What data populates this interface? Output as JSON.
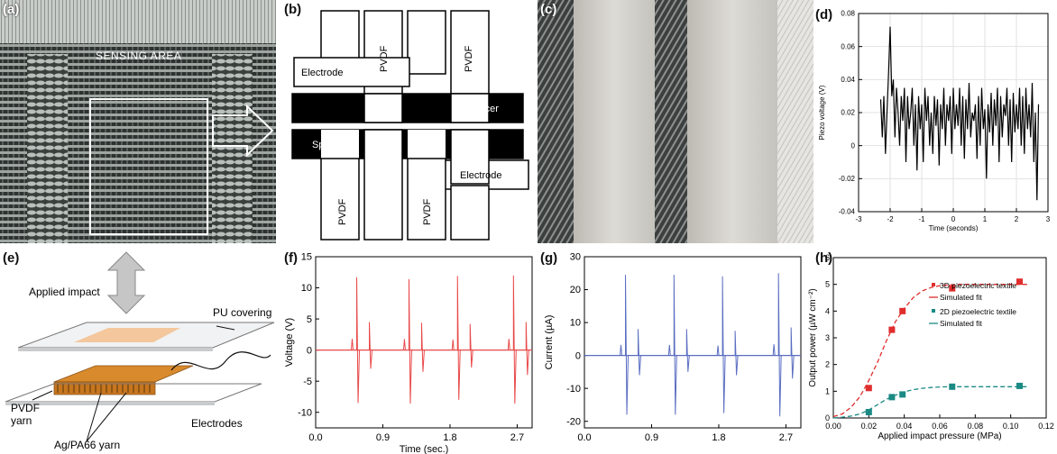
{
  "panels": {
    "a": {
      "label": "(a)",
      "sensing_text": "SENSING AREA"
    },
    "b": {
      "label": "(b)",
      "pvdf": "PVDF",
      "electrode": "Electrode",
      "spacer": "Spacer"
    },
    "c": {
      "label": "(c)"
    },
    "d": {
      "label": "(d)"
    },
    "e": {
      "label": "(e)",
      "applied_impact": "Applied impact",
      "pu_covering": "PU covering",
      "pvdf_yarn": "PVDF\nyarn",
      "agpa_yarn": "Ag/PA66 yarn",
      "electrodes": "Electrodes"
    },
    "f": {
      "label": "(f)"
    },
    "g": {
      "label": "(g)"
    },
    "h": {
      "label": "(h)"
    }
  },
  "colors": {
    "red": "#e8494a",
    "blue": "#5a6dc0",
    "teal": "#1a8a84",
    "black": "#000000",
    "orange": "#d88a2c",
    "fabric_dark": "#3b3f3e",
    "fabric_light": "#d8d6d0"
  },
  "chart_data": [
    {
      "id": "d",
      "type": "line",
      "xlabel": "Time (seconds)",
      "ylabel": "Piezo voltage (V)",
      "xlim": [
        -3,
        3
      ],
      "ylim": [
        -0.04,
        0.08
      ],
      "xticks": [
        -3,
        -2,
        -1,
        0,
        1,
        2,
        3
      ],
      "yticks": [
        -0.04,
        -0.02,
        0,
        0.02,
        0.04,
        0.06,
        0.08
      ],
      "grid": true,
      "x": [
        -2.3,
        -2.25,
        -2.2,
        -2.15,
        -2.1,
        -2.05,
        -2.0,
        -1.95,
        -1.9,
        -1.85,
        -1.8,
        -1.75,
        -1.7,
        -1.65,
        -1.6,
        -1.55,
        -1.5,
        -1.45,
        -1.4,
        -1.35,
        -1.3,
        -1.25,
        -1.2,
        -1.15,
        -1.1,
        -1.05,
        -1.0,
        -0.95,
        -0.9,
        -0.85,
        -0.8,
        -0.75,
        -0.7,
        -0.65,
        -0.6,
        -0.55,
        -0.5,
        -0.45,
        -0.4,
        -0.35,
        -0.3,
        -0.25,
        -0.2,
        -0.15,
        -0.1,
        -0.05,
        0.0,
        0.05,
        0.1,
        0.15,
        0.2,
        0.25,
        0.3,
        0.35,
        0.4,
        0.45,
        0.5,
        0.55,
        0.6,
        0.65,
        0.7,
        0.75,
        0.8,
        0.85,
        0.9,
        0.95,
        1.0,
        1.05,
        1.1,
        1.15,
        1.2,
        1.25,
        1.3,
        1.35,
        1.4,
        1.45,
        1.5,
        1.55,
        1.6,
        1.65,
        1.7,
        1.75,
        1.8,
        1.85,
        1.9,
        1.95,
        2.0,
        2.05,
        2.1,
        2.15,
        2.2,
        2.25,
        2.3,
        2.35,
        2.4,
        2.45,
        2.5,
        2.55,
        2.6,
        2.65,
        2.7
      ],
      "y": [
        0.028,
        0.005,
        0.03,
        -0.005,
        0.02,
        0.045,
        0.072,
        0.03,
        0.04,
        0.005,
        0.035,
        0.02,
        0.0,
        0.03,
        0.015,
        0.035,
        -0.01,
        0.03,
        0.01,
        0.02,
        0.035,
        0.0,
        0.025,
        -0.015,
        0.03,
        0.01,
        0.025,
        -0.01,
        0.035,
        0.015,
        0.03,
        0.0,
        0.02,
        -0.005,
        0.03,
        0.012,
        0.028,
        -0.012,
        0.025,
        0.01,
        0.035,
        0.0,
        0.025,
        0.015,
        0.03,
        -0.005,
        0.035,
        0.01,
        0.025,
        0.012,
        0.035,
        0.0,
        0.03,
        -0.008,
        0.028,
        0.01,
        0.038,
        0.005,
        0.02,
        0.015,
        0.025,
        -0.008,
        0.03,
        0.0,
        0.035,
        0.01,
        0.022,
        -0.02,
        0.025,
        0.008,
        0.032,
        0.0,
        0.028,
        0.012,
        0.035,
        -0.01,
        0.03,
        0.005,
        0.025,
        0.018,
        0.035,
        0.0,
        0.028,
        -0.01,
        0.032,
        0.008,
        0.025,
        0.01,
        0.035,
        0.0,
        0.03,
        -0.005,
        0.035,
        0.01,
        0.025,
        0.005,
        0.038,
        -0.01,
        0.02,
        -0.033,
        0.025
      ]
    },
    {
      "id": "f",
      "type": "line",
      "xlabel": "Time (sec.)",
      "ylabel": "Voltage (V)",
      "xlim": [
        0,
        2.9
      ],
      "ylim": [
        -12.5,
        15
      ],
      "xticks": [
        0.0,
        0.9,
        1.8,
        2.7
      ],
      "xtick_labels": [
        "0.0",
        "0.9",
        "1.8",
        "2.7"
      ],
      "yticks": [
        -10,
        -5,
        0,
        5,
        10,
        15
      ],
      "spikes": [
        {
          "t": 0.55,
          "pos": 11.7,
          "neg": -8.5,
          "sub_pos": 4.5,
          "sub_neg": -3.0
        },
        {
          "t": 1.25,
          "pos": 11.4,
          "neg": -8.6,
          "sub_pos": 4.4,
          "sub_neg": -3.5
        },
        {
          "t": 1.9,
          "pos": 11.9,
          "neg": -8.0,
          "sub_pos": 4.2,
          "sub_neg": -2.8
        },
        {
          "t": 2.65,
          "pos": 12.0,
          "neg": -8.6,
          "sub_pos": 4.5,
          "sub_neg": -4.0
        }
      ]
    },
    {
      "id": "g",
      "type": "line",
      "xlabel": "",
      "ylabel": "Current (µA)",
      "xlim": [
        0,
        2.9
      ],
      "ylim": [
        -22,
        30
      ],
      "xticks": [
        0.0,
        0.9,
        1.8,
        2.7
      ],
      "xtick_labels": [
        "0.0",
        "0.9",
        "1.8",
        "2.7"
      ],
      "yticks": [
        -20,
        -10,
        0,
        10,
        20,
        30
      ],
      "spikes": [
        {
          "t": 0.55,
          "pos": 24.5,
          "neg": -18.0,
          "sub_pos": 8.0,
          "sub_neg": -6.0
        },
        {
          "t": 1.2,
          "pos": 24.5,
          "neg": -18.0,
          "sub_pos": 8.0,
          "sub_neg": -5.0
        },
        {
          "t": 1.85,
          "pos": 24.0,
          "neg": -17.5,
          "sub_pos": 7.5,
          "sub_neg": -6.0
        },
        {
          "t": 2.6,
          "pos": 25.0,
          "neg": -18.5,
          "sub_pos": 8.5,
          "sub_neg": -7.0
        }
      ]
    },
    {
      "id": "h",
      "type": "scatter",
      "xlabel": "Applied impact pressure (MPa)",
      "ylabel": "Output power (µW cm⁻²)",
      "xlim": [
        0,
        0.12
      ],
      "ylim": [
        0,
        6
      ],
      "xticks": [
        0,
        0.02,
        0.04,
        0.06,
        0.08,
        0.1,
        0.12
      ],
      "xtick_labels": [
        "0.00",
        "0.02",
        "0.04",
        "0.06",
        "0.08",
        "0.10",
        "0.12"
      ],
      "yticks": [
        0,
        1,
        2,
        3,
        4,
        5,
        6
      ],
      "legend_position": "right",
      "series": [
        {
          "name": "3D piezoelectric textile",
          "color": "#e02d2d",
          "x": [
            0.02,
            0.033,
            0.039,
            0.067,
            0.105
          ],
          "y": [
            1.12,
            3.3,
            4.0,
            4.85,
            5.1
          ]
        },
        {
          "name": "Simulated fit",
          "color": "#e02d2d",
          "fit": true,
          "x": [
            0.0,
            0.005,
            0.01,
            0.015,
            0.02,
            0.025,
            0.03,
            0.035,
            0.04,
            0.045,
            0.05,
            0.055,
            0.06,
            0.065,
            0.07,
            0.08,
            0.09,
            0.1,
            0.11
          ],
          "y": [
            0.05,
            0.15,
            0.4,
            0.8,
            1.4,
            2.1,
            2.9,
            3.6,
            4.1,
            4.5,
            4.75,
            4.88,
            4.95,
            4.98,
            5.0,
            5.0,
            5.0,
            5.0,
            5.0
          ]
        },
        {
          "name": "2D piezoelectric textile",
          "color": "#1a8a84",
          "x": [
            0.02,
            0.033,
            0.039,
            0.067,
            0.105
          ],
          "y": [
            0.22,
            0.78,
            0.88,
            1.17,
            1.2
          ]
        },
        {
          "name": "Simulated fit",
          "color": "#1a8a84",
          "fit": true,
          "x": [
            0.0,
            0.005,
            0.01,
            0.015,
            0.02,
            0.025,
            0.03,
            0.035,
            0.04,
            0.045,
            0.05,
            0.055,
            0.06,
            0.065,
            0.07,
            0.08,
            0.09,
            0.1,
            0.11
          ],
          "y": [
            0.0,
            0.03,
            0.07,
            0.15,
            0.3,
            0.5,
            0.7,
            0.85,
            0.98,
            1.06,
            1.11,
            1.14,
            1.16,
            1.17,
            1.17,
            1.17,
            1.17,
            1.17,
            1.17
          ]
        }
      ]
    }
  ]
}
